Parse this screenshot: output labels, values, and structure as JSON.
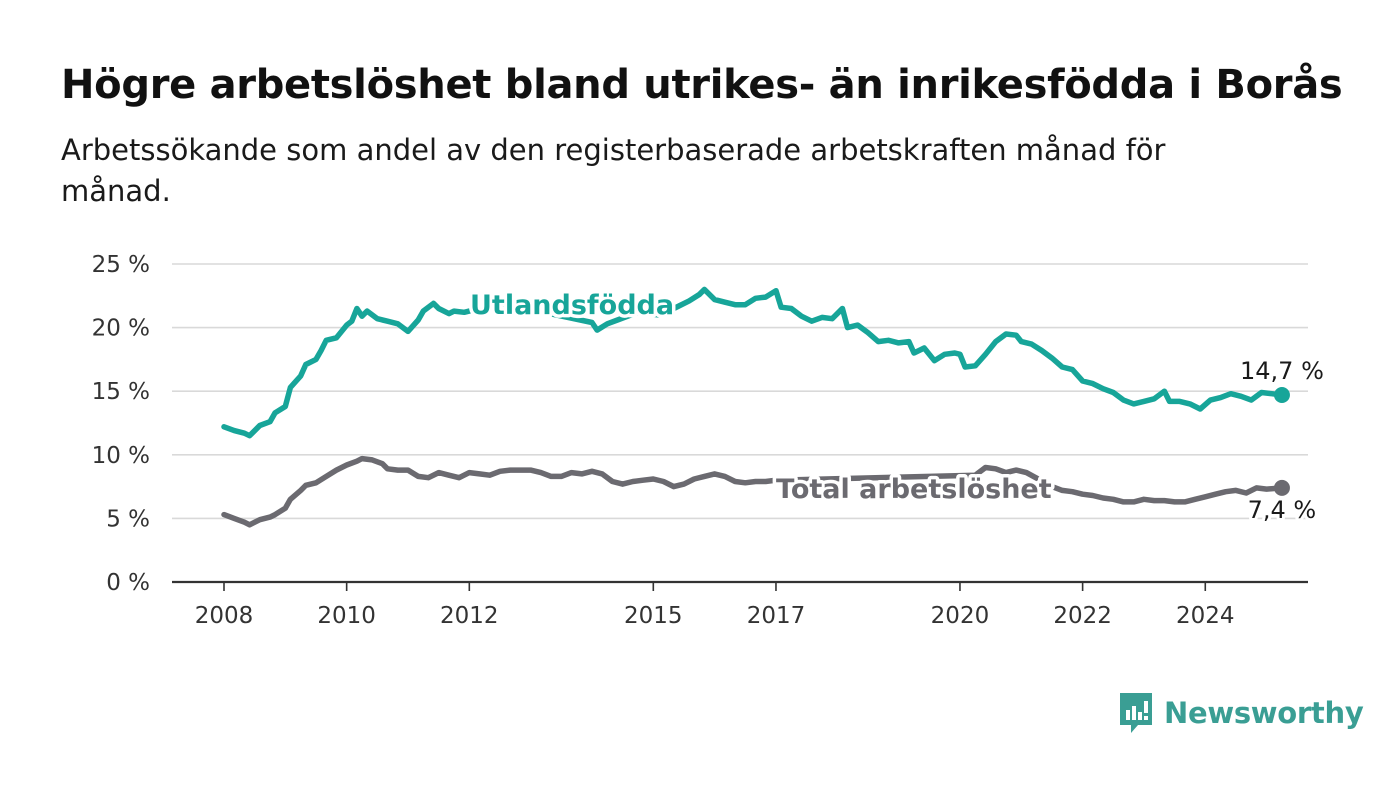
{
  "title": "Högre arbetslöshet bland utrikes- än inrikesfödda i Borås",
  "subtitle": "Arbetssökande som andel av den registerbaserade arbetskraften månad för månad.",
  "brand": {
    "name": "Newsworthy",
    "color": "#3a9e94"
  },
  "chart_data": {
    "type": "line",
    "title": "Högre arbetslöshet bland utrikes- än inrikesfödda i Borås",
    "xlabel": "",
    "ylabel": "",
    "ylim": [
      0,
      25
    ],
    "xlim": [
      "2008-01",
      "2025-04"
    ],
    "grid": true,
    "legend": "inline labels",
    "y_ticks": [
      {
        "v": 0,
        "label": "0 %"
      },
      {
        "v": 5,
        "label": "5 %"
      },
      {
        "v": 10,
        "label": "10 %"
      },
      {
        "v": 15,
        "label": "15 %"
      },
      {
        "v": 20,
        "label": "20 %"
      },
      {
        "v": 25,
        "label": "25 %"
      }
    ],
    "x_ticks": [
      {
        "date": "2008-01",
        "label": "2008"
      },
      {
        "date": "2010-01",
        "label": "2010"
      },
      {
        "date": "2012-01",
        "label": "2012"
      },
      {
        "date": "2015-01",
        "label": "2015"
      },
      {
        "date": "2017-01",
        "label": "2017"
      },
      {
        "date": "2020-01",
        "label": "2020"
      },
      {
        "date": "2022-01",
        "label": "2022"
      },
      {
        "date": "2024-01",
        "label": "2024"
      }
    ],
    "series": [
      {
        "name": "Utlandsfödda",
        "color": "#17a599",
        "end_label": "14,7 %",
        "points": [
          [
            "2008-01",
            12.2
          ],
          [
            "2008-03",
            11.9
          ],
          [
            "2008-05",
            11.7
          ],
          [
            "2008-06",
            11.5
          ],
          [
            "2008-08",
            12.3
          ],
          [
            "2008-10",
            12.6
          ],
          [
            "2008-11",
            13.3
          ],
          [
            "2009-01",
            13.8
          ],
          [
            "2009-02",
            15.3
          ],
          [
            "2009-04",
            16.2
          ],
          [
            "2009-05",
            17.1
          ],
          [
            "2009-07",
            17.5
          ],
          [
            "2009-08",
            18.2
          ],
          [
            "2009-09",
            19.0
          ],
          [
            "2009-11",
            19.2
          ],
          [
            "2010-01",
            20.2
          ],
          [
            "2010-02",
            20.5
          ],
          [
            "2010-03",
            21.5
          ],
          [
            "2010-04",
            20.9
          ],
          [
            "2010-05",
            21.3
          ],
          [
            "2010-07",
            20.7
          ],
          [
            "2010-09",
            20.5
          ],
          [
            "2010-11",
            20.3
          ],
          [
            "2011-01",
            19.7
          ],
          [
            "2011-03",
            20.6
          ],
          [
            "2011-04",
            21.3
          ],
          [
            "2011-06",
            21.9
          ],
          [
            "2011-07",
            21.5
          ],
          [
            "2011-09",
            21.1
          ],
          [
            "2011-10",
            21.3
          ],
          [
            "2011-12",
            21.2
          ],
          [
            "2012-02",
            21.4
          ],
          [
            "2012-03",
            21.8
          ],
          [
            "2012-05",
            22.1
          ],
          [
            "2014-01",
            20.4
          ],
          [
            "2014-02",
            19.8
          ],
          [
            "2014-04",
            20.3
          ],
          [
            "2014-06",
            20.6
          ],
          [
            "2014-10",
            21.2
          ],
          [
            "2015-02",
            21.0
          ],
          [
            "2015-04",
            21.3
          ],
          [
            "2015-06",
            21.7
          ],
          [
            "2015-08",
            22.1
          ],
          [
            "2015-10",
            22.6
          ],
          [
            "2015-11",
            23.0
          ],
          [
            "2016-01",
            22.2
          ],
          [
            "2016-03",
            22.0
          ],
          [
            "2016-05",
            21.8
          ],
          [
            "2016-07",
            21.8
          ],
          [
            "2016-09",
            22.3
          ],
          [
            "2016-11",
            22.4
          ],
          [
            "2017-01",
            22.9
          ],
          [
            "2017-02",
            21.6
          ],
          [
            "2017-04",
            21.5
          ],
          [
            "2017-06",
            20.9
          ],
          [
            "2017-08",
            20.5
          ],
          [
            "2017-10",
            20.8
          ],
          [
            "2017-12",
            20.7
          ],
          [
            "2018-02",
            21.5
          ],
          [
            "2018-03",
            20.0
          ],
          [
            "2018-05",
            20.2
          ],
          [
            "2018-07",
            19.6
          ],
          [
            "2018-09",
            18.9
          ],
          [
            "2018-11",
            19.0
          ],
          [
            "2019-01",
            18.8
          ],
          [
            "2019-03",
            18.9
          ],
          [
            "2019-04",
            18.0
          ],
          [
            "2019-06",
            18.4
          ],
          [
            "2019-08",
            17.4
          ],
          [
            "2019-10",
            17.9
          ],
          [
            "2019-12",
            18.0
          ],
          [
            "2020-01",
            17.9
          ],
          [
            "2020-02",
            16.9
          ],
          [
            "2020-04",
            17.0
          ],
          [
            "2020-06",
            17.9
          ],
          [
            "2020-08",
            18.9
          ],
          [
            "2020-10",
            19.5
          ],
          [
            "2020-12",
            19.4
          ],
          [
            "2021-01",
            18.9
          ],
          [
            "2021-03",
            18.7
          ],
          [
            "2021-05",
            18.2
          ],
          [
            "2021-07",
            17.6
          ],
          [
            "2021-09",
            16.9
          ],
          [
            "2021-11",
            16.7
          ],
          [
            "2022-01",
            15.8
          ],
          [
            "2022-03",
            15.6
          ],
          [
            "2022-05",
            15.2
          ],
          [
            "2022-07",
            14.9
          ],
          [
            "2022-09",
            14.3
          ],
          [
            "2022-11",
            14.0
          ],
          [
            "2023-01",
            14.2
          ],
          [
            "2023-03",
            14.4
          ],
          [
            "2023-05",
            15.0
          ],
          [
            "2023-06",
            14.2
          ],
          [
            "2023-08",
            14.2
          ],
          [
            "2023-10",
            14.0
          ],
          [
            "2023-12",
            13.6
          ],
          [
            "2024-02",
            14.3
          ],
          [
            "2024-04",
            14.5
          ],
          [
            "2024-06",
            14.8
          ],
          [
            "2024-08",
            14.6
          ],
          [
            "2024-10",
            14.3
          ],
          [
            "2024-12",
            14.9
          ],
          [
            "2025-02",
            14.8
          ],
          [
            "2025-04",
            14.7
          ]
        ]
      },
      {
        "name": "Total arbetslöshet",
        "color": "#6b6a70",
        "end_label": "7,4 %",
        "points": [
          [
            "2008-01",
            5.3
          ],
          [
            "2008-03",
            5.0
          ],
          [
            "2008-05",
            4.7
          ],
          [
            "2008-06",
            4.5
          ],
          [
            "2008-08",
            4.9
          ],
          [
            "2008-10",
            5.1
          ],
          [
            "2008-11",
            5.3
          ],
          [
            "2009-01",
            5.8
          ],
          [
            "2009-02",
            6.5
          ],
          [
            "2009-04",
            7.2
          ],
          [
            "2009-05",
            7.6
          ],
          [
            "2009-07",
            7.8
          ],
          [
            "2009-09",
            8.3
          ],
          [
            "2009-11",
            8.8
          ],
          [
            "2010-01",
            9.2
          ],
          [
            "2010-03",
            9.5
          ],
          [
            "2010-04",
            9.7
          ],
          [
            "2010-06",
            9.6
          ],
          [
            "2010-08",
            9.3
          ],
          [
            "2010-09",
            8.9
          ],
          [
            "2010-11",
            8.8
          ],
          [
            "2011-01",
            8.8
          ],
          [
            "2011-03",
            8.3
          ],
          [
            "2011-05",
            8.2
          ],
          [
            "2011-07",
            8.6
          ],
          [
            "2011-09",
            8.4
          ],
          [
            "2011-11",
            8.2
          ],
          [
            "2012-01",
            8.6
          ],
          [
            "2012-03",
            8.5
          ],
          [
            "2012-05",
            8.4
          ],
          [
            "2012-07",
            8.7
          ],
          [
            "2012-09",
            8.8
          ],
          [
            "2012-11",
            8.8
          ],
          [
            "2013-01",
            8.8
          ],
          [
            "2013-03",
            8.6
          ],
          [
            "2013-05",
            8.3
          ],
          [
            "2013-07",
            8.3
          ],
          [
            "2013-09",
            8.6
          ],
          [
            "2013-11",
            8.5
          ],
          [
            "2014-01",
            8.7
          ],
          [
            "2014-03",
            8.5
          ],
          [
            "2014-05",
            7.9
          ],
          [
            "2014-07",
            7.7
          ],
          [
            "2014-09",
            7.9
          ],
          [
            "2014-11",
            8.0
          ],
          [
            "2015-01",
            8.1
          ],
          [
            "2015-03",
            7.9
          ],
          [
            "2015-05",
            7.5
          ],
          [
            "2015-07",
            7.7
          ],
          [
            "2015-09",
            8.1
          ],
          [
            "2015-11",
            8.3
          ],
          [
            "2016-01",
            8.5
          ],
          [
            "2016-03",
            8.3
          ],
          [
            "2016-05",
            7.9
          ],
          [
            "2016-07",
            7.8
          ],
          [
            "2016-09",
            7.9
          ],
          [
            "2016-11",
            7.9
          ],
          [
            "2017-01",
            8.0
          ],
          [
            "2020-04",
            8.4
          ],
          [
            "2020-06",
            9.0
          ],
          [
            "2020-08",
            8.9
          ],
          [
            "2020-10",
            8.6
          ],
          [
            "2020-12",
            8.8
          ],
          [
            "2021-02",
            8.6
          ],
          [
            "2021-07",
            7.5
          ],
          [
            "2021-09",
            7.2
          ],
          [
            "2021-11",
            7.1
          ],
          [
            "2022-01",
            6.9
          ],
          [
            "2022-03",
            6.8
          ],
          [
            "2022-05",
            6.6
          ],
          [
            "2022-07",
            6.5
          ],
          [
            "2022-09",
            6.3
          ],
          [
            "2022-11",
            6.3
          ],
          [
            "2023-01",
            6.5
          ],
          [
            "2023-03",
            6.4
          ],
          [
            "2023-05",
            6.4
          ],
          [
            "2023-07",
            6.3
          ],
          [
            "2023-09",
            6.3
          ],
          [
            "2023-11",
            6.5
          ],
          [
            "2024-01",
            6.7
          ],
          [
            "2024-03",
            6.9
          ],
          [
            "2024-05",
            7.1
          ],
          [
            "2024-07",
            7.2
          ],
          [
            "2024-09",
            7.0
          ],
          [
            "2024-11",
            7.4
          ],
          [
            "2025-01",
            7.3
          ],
          [
            "2025-04",
            7.4
          ]
        ]
      }
    ]
  }
}
